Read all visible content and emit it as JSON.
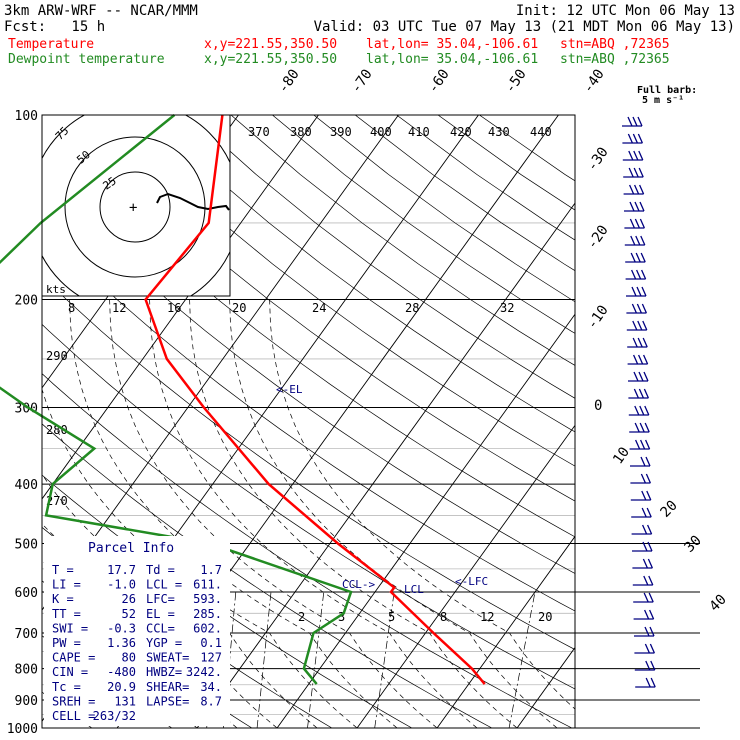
{
  "header": {
    "line1_left": "3km ARW-WRF -- NCAR/MMM",
    "line1_right": "Init: 12 UTC Mon 06 May 13",
    "fcst_label": "Fcst:   15 h",
    "valid": "Valid: 03 UTC Tue 07 May 13 (21 MDT Mon 06 May 13)",
    "temp_row": {
      "label": "Temperature",
      "xy": "x,y=221.55,350.50",
      "latlon": "lat,lon= 35.04,-106.61",
      "stn": "stn=ABQ ,72365"
    },
    "dew_row": {
      "label": "Dewpoint temperature",
      "xy": "x,y=221.55,350.50",
      "latlon": "lat,lon= 35.04,-106.61",
      "stn": "stn=ABQ ,72365"
    }
  },
  "colors": {
    "temperature": "#ff0000",
    "dewpoint": "#228b22",
    "text": "#000000",
    "label_blue": "#000080",
    "wind": "#000080"
  },
  "wind_panel": {
    "title": "Full barb:",
    "unit": "5 m s⁻¹"
  },
  "hodograph": {
    "kts_label": "kts",
    "ring_labels": [
      "25",
      "50",
      "75"
    ]
  },
  "parcel_info": {
    "title": "Parcel Info",
    "rows": [
      [
        "T   =",
        "17.7",
        "Td =",
        "1.7"
      ],
      [
        "LI  =",
        "-1.0",
        "LCL =",
        "611."
      ],
      [
        "K   =",
        "26",
        "LFC=",
        "593."
      ],
      [
        "TT  =",
        "52",
        "EL  =",
        "285."
      ],
      [
        "SWI =",
        "-0.3",
        "CCL=",
        "602."
      ],
      [
        "PW  =",
        "1.36",
        "YGP =",
        "0.1"
      ],
      [
        "CAPE =",
        "80",
        "SWEAT=",
        "127"
      ],
      [
        "CIN  =",
        "-480",
        "HWBZ=",
        "3242."
      ],
      [
        "Tc  =",
        "20.9",
        "SHEAR=",
        "34."
      ],
      [
        "SREH =",
        "131",
        "LAPSE=",
        "8.7"
      ],
      [
        "CELL =",
        "263/32",
        "",
        ""
      ]
    ]
  },
  "parcel_labels": {
    "el": "<-EL",
    "lfc": "<-LFC",
    "lcl": "LCL",
    "ccl": "CCL->"
  },
  "chart_data": {
    "type": "line",
    "title": "",
    "pressure_levels": [
      100,
      200,
      300,
      400,
      500,
      600,
      700,
      800,
      900,
      1000
    ],
    "pressure_labels": [
      "100",
      "200",
      "300",
      "400",
      "500",
      "600",
      "700",
      "800",
      "900",
      "1000"
    ],
    "isotherm_labels": [
      "-80",
      "-70",
      "-60",
      "-50",
      "-40",
      "-30",
      "-20",
      "-10",
      "0",
      "10",
      "20",
      "30",
      "40"
    ],
    "mixing_ratio_labels": [
      "2",
      "3",
      "5",
      "8",
      "12",
      "20"
    ],
    "theta_labels": [
      "270",
      "280",
      "290"
    ],
    "theta_e_labels": [
      "370",
      "380",
      "390",
      "400",
      "410",
      "420",
      "430",
      "440"
    ],
    "hodo_speed_labels": [
      "8",
      "12",
      "16",
      "20",
      "24",
      "28",
      "32"
    ],
    "series": [
      {
        "name": "Temperature",
        "points": [
          [
            100,
            -62
          ],
          [
            150,
            -54
          ],
          [
            200,
            -55
          ],
          [
            250,
            -47
          ],
          [
            300,
            -38
          ],
          [
            400,
            -23
          ],
          [
            500,
            -9
          ],
          [
            590,
            2
          ],
          [
            600,
            2
          ],
          [
            700,
            11
          ],
          [
            800,
            19
          ],
          [
            848,
            22
          ]
        ]
      },
      {
        "name": "Dewpoint temperature",
        "points": [
          [
            100,
            -68
          ],
          [
            150,
            -75
          ],
          [
            200,
            -78
          ],
          [
            250,
            -73
          ],
          [
            300,
            -60
          ],
          [
            350,
            -48
          ],
          [
            400,
            -50
          ],
          [
            450,
            -48
          ],
          [
            500,
            -25
          ],
          [
            600,
            -3
          ],
          [
            650,
            -2
          ],
          [
            700,
            -4
          ],
          [
            800,
            -2
          ],
          [
            848,
            1
          ]
        ]
      }
    ]
  }
}
